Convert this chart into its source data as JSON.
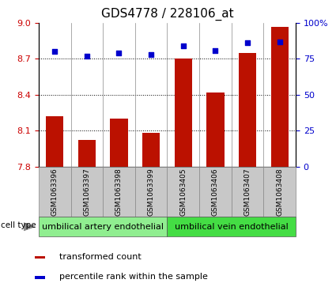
{
  "title": "GDS4778 / 228106_at",
  "samples": [
    "GSM1063396",
    "GSM1063397",
    "GSM1063398",
    "GSM1063399",
    "GSM1063405",
    "GSM1063406",
    "GSM1063407",
    "GSM1063408"
  ],
  "transformed_count": [
    8.22,
    8.02,
    8.2,
    8.08,
    8.7,
    8.42,
    8.75,
    8.97
  ],
  "percentile_rank": [
    80,
    77,
    79,
    78,
    84,
    81,
    86,
    87
  ],
  "ylim_left": [
    7.8,
    9.0
  ],
  "ylim_right": [
    0,
    100
  ],
  "yticks_left": [
    7.8,
    8.1,
    8.4,
    8.7,
    9.0
  ],
  "yticks_right": [
    0,
    25,
    50,
    75,
    100
  ],
  "ytick_labels_right": [
    "0",
    "25",
    "50",
    "75",
    "100%"
  ],
  "bar_color": "#bb1100",
  "dot_color": "#0000cc",
  "cell_type_groups": [
    {
      "label": "umbilical artery endothelial",
      "start": 0,
      "end": 3,
      "color": "#90ee90"
    },
    {
      "label": "umbilical vein endothelial",
      "start": 4,
      "end": 7,
      "color": "#44dd44"
    }
  ],
  "cell_type_label": "cell type",
  "legend_items": [
    {
      "label": "transformed count",
      "color": "#bb1100"
    },
    {
      "label": "percentile rank within the sample",
      "color": "#0000cc"
    }
  ],
  "bar_width": 0.55,
  "tick_label_color_left": "#cc0000",
  "tick_label_color_right": "#0000cc",
  "title_fontsize": 11,
  "axis_fontsize": 8,
  "legend_fontsize": 8,
  "sample_label_fontsize": 6.5,
  "xtick_box_color": "#c8c8c8",
  "group_label_fontsize": 8
}
